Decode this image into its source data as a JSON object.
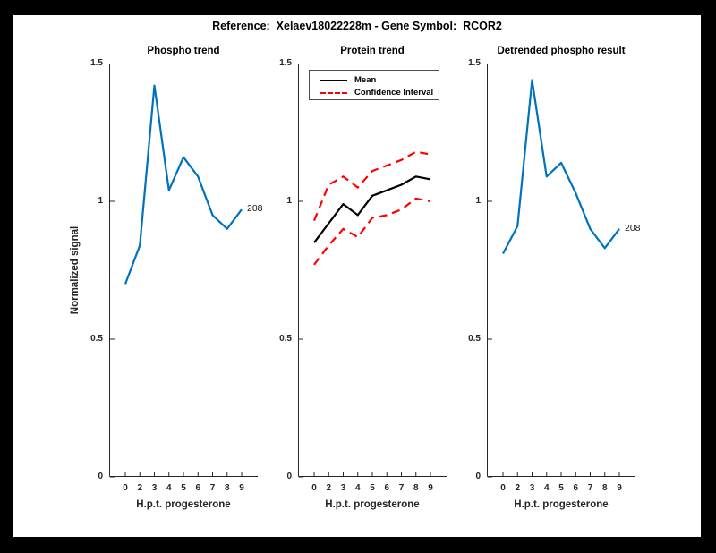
{
  "window": {
    "background": "#000000",
    "paper": "#ffffff"
  },
  "figure_title": "Reference:  Xelaev18022228m - Gene Symbol:  RCOR2",
  "style": {
    "axis_color": "#262626",
    "blue": "#0072BD",
    "red": "#FF0000",
    "black": "#000000"
  },
  "chart_data": [
    {
      "type": "line",
      "title": "Phospho trend",
      "xlabel": "H.p.t. progesterone",
      "ylabel": "Normalized signal",
      "categories": [
        "0",
        "2",
        "3",
        "4",
        "5",
        "6",
        "7",
        "8",
        "9"
      ],
      "ylim": [
        0,
        1.5
      ],
      "yticks": [
        0,
        0.5,
        1,
        1.5
      ],
      "ytick_labels": [
        "0",
        "0.5",
        "1",
        "1.5"
      ],
      "grid": false,
      "end_label": "208",
      "series": [
        {
          "name": "Phospho signal 208",
          "color": "#0072BD",
          "style": "solid",
          "values": [
            0.7,
            0.84,
            1.42,
            1.04,
            1.16,
            1.09,
            0.95,
            0.9,
            0.97
          ]
        }
      ]
    },
    {
      "type": "line",
      "title": "Protein trend",
      "xlabel": "H.p.t. progesterone",
      "categories": [
        "0",
        "2",
        "3",
        "4",
        "5",
        "6",
        "7",
        "8",
        "9"
      ],
      "ylim": [
        0,
        1.5
      ],
      "yticks": [
        0,
        0.5,
        1,
        1.5
      ],
      "ytick_labels": [
        "0",
        "0.5",
        "1",
        "1.5"
      ],
      "grid": false,
      "legend": {
        "position": "top-left",
        "items": [
          {
            "label": "Mean",
            "color": "#000000",
            "style": "solid"
          },
          {
            "label": "Confidence Interval",
            "color": "#FF0000",
            "style": "dashed"
          }
        ]
      },
      "series": [
        {
          "name": "Mean",
          "color": "#000000",
          "style": "solid",
          "values": [
            0.85,
            0.92,
            0.99,
            0.95,
            1.02,
            1.04,
            1.06,
            1.09,
            1.08
          ]
        },
        {
          "name": "Confidence Interval upper",
          "color": "#FF0000",
          "style": "dashed",
          "values": [
            0.93,
            1.06,
            1.09,
            1.05,
            1.11,
            1.13,
            1.15,
            1.18,
            1.17
          ]
        },
        {
          "name": "Confidence Interval lower",
          "color": "#FF0000",
          "style": "dashed",
          "values": [
            0.77,
            0.84,
            0.9,
            0.87,
            0.94,
            0.95,
            0.97,
            1.01,
            1.0
          ]
        }
      ]
    },
    {
      "type": "line",
      "title": "Detrended phospho result",
      "xlabel": "H.p.t. progesterone",
      "categories": [
        "0",
        "2",
        "3",
        "4",
        "5",
        "6",
        "7",
        "8",
        "9"
      ],
      "ylim": [
        0,
        1.5
      ],
      "yticks": [
        0,
        0.5,
        1,
        1.5
      ],
      "ytick_labels": [
        "0",
        "0.5",
        "1",
        "1.5"
      ],
      "grid": false,
      "end_label": "208",
      "series": [
        {
          "name": "Detrended phospho signal 208",
          "color": "#0072BD",
          "style": "solid",
          "values": [
            0.81,
            0.91,
            1.44,
            1.09,
            1.14,
            1.03,
            0.9,
            0.83,
            0.9
          ]
        }
      ]
    }
  ]
}
